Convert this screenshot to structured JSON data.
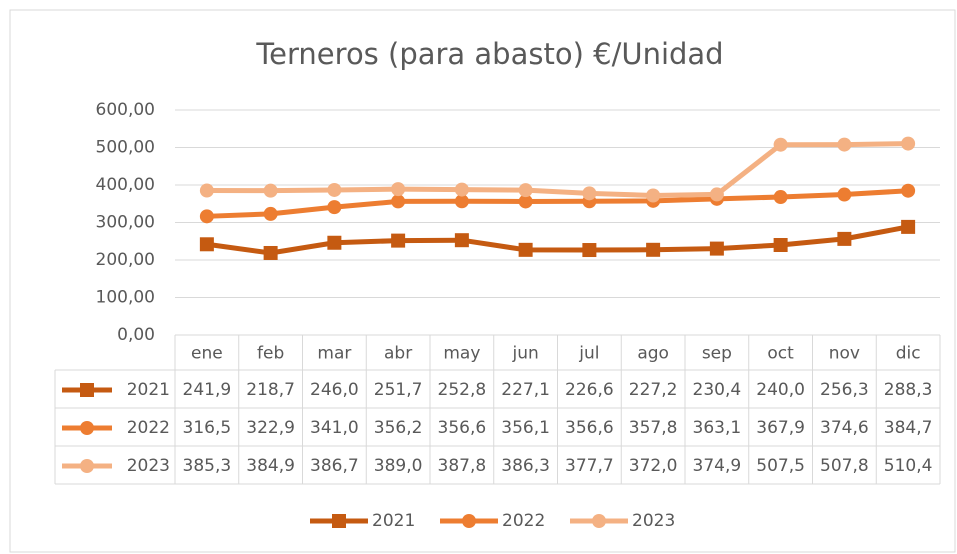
{
  "chart_data": {
    "type": "line",
    "title": "Terneros (para abasto) €/Unidad",
    "categories": [
      "ene",
      "feb",
      "mar",
      "abr",
      "may",
      "jun",
      "jul",
      "ago",
      "sep",
      "oct",
      "nov",
      "dic"
    ],
    "ylim": [
      0,
      600
    ],
    "yticks": [
      {
        "value": 0,
        "label": "0,00"
      },
      {
        "value": 100,
        "label": "100,00"
      },
      {
        "value": 200,
        "label": "200,00"
      },
      {
        "value": 300,
        "label": "300,00"
      },
      {
        "value": 400,
        "label": "400,00"
      },
      {
        "value": 500,
        "label": "500,00"
      },
      {
        "value": 600,
        "label": "600,00"
      }
    ],
    "grid": true,
    "legend": "bottom",
    "series": [
      {
        "name": "2021",
        "color": "#c55a11",
        "marker": "square",
        "values": [
          241.9,
          218.7,
          246.0,
          251.7,
          252.8,
          227.1,
          226.6,
          227.2,
          230.4,
          240.0,
          256.3,
          288.3
        ],
        "value_labels": [
          "241,9",
          "218,7",
          "246,0",
          "251,7",
          "252,8",
          "227,1",
          "226,6",
          "227,2",
          "230,4",
          "240,0",
          "256,3",
          "288,3"
        ]
      },
      {
        "name": "2022",
        "color": "#ed7d31",
        "marker": "circle",
        "values": [
          316.5,
          322.9,
          341.0,
          356.2,
          356.6,
          356.1,
          356.6,
          357.8,
          363.1,
          367.9,
          374.6,
          384.7
        ],
        "value_labels": [
          "316,5",
          "322,9",
          "341,0",
          "356,2",
          "356,6",
          "356,1",
          "356,6",
          "357,8",
          "363,1",
          "367,9",
          "374,6",
          "384,7"
        ]
      },
      {
        "name": "2023",
        "color": "#f4b183",
        "marker": "circle",
        "values": [
          385.3,
          384.9,
          386.7,
          389.0,
          387.8,
          386.3,
          377.7,
          372.0,
          374.9,
          507.5,
          507.8,
          510.4
        ],
        "value_labels": [
          "385,3",
          "384,9",
          "386,7",
          "389,0",
          "387,8",
          "386,3",
          "377,7",
          "372,0",
          "374,9",
          "507,5",
          "507,8",
          "510,4"
        ]
      }
    ]
  }
}
